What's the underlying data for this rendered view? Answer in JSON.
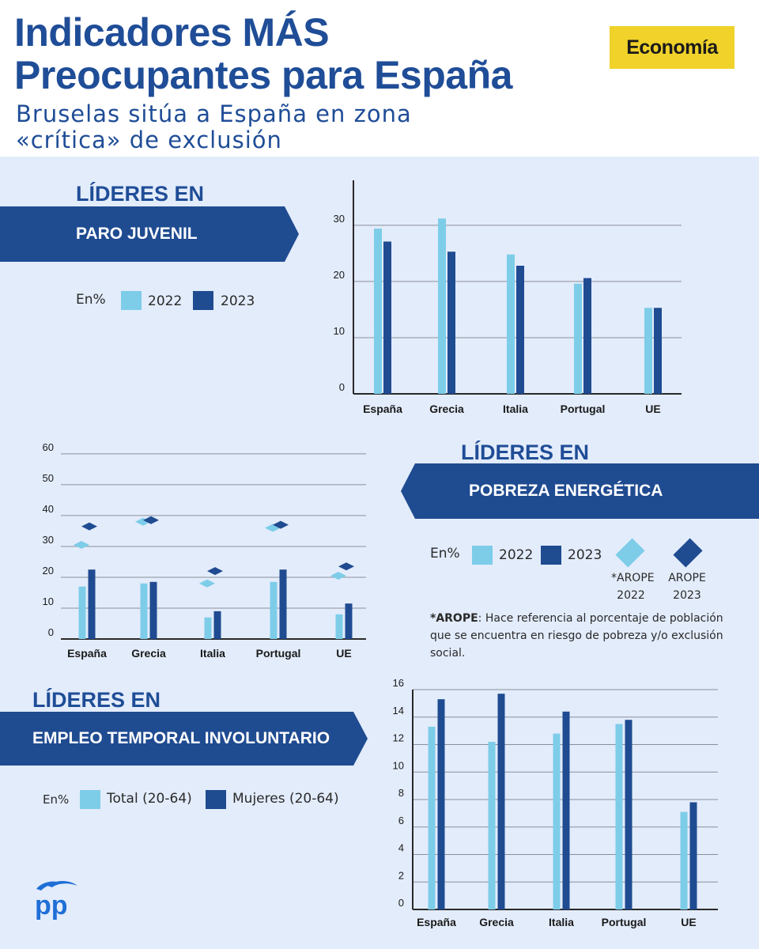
{
  "header": {
    "title_line1_part1": "Indicadores ",
    "title_line1_part2": "MÁS",
    "title_line2": "Preocupantes para España",
    "subtitle_line1": "Bruselas sitúa a España en zona",
    "subtitle_line2": "«crítica» de exclusión",
    "badge": "Economía"
  },
  "sections": {
    "paro": {
      "lideres": "LÍDERES EN",
      "banner": "PARO JUVENIL",
      "unit": "En%",
      "legend": [
        "2022",
        "2023"
      ]
    },
    "pobreza": {
      "lideres": "LÍDERES EN",
      "banner": "POBREZA ENERGÉTICA",
      "unit": "En%",
      "legend": [
        "2022",
        "2023"
      ],
      "arope2022_l1": "*AROPE",
      "arope2022_l2": "2022",
      "arope2023_l1": "AROPE",
      "arope2023_l2": "2023",
      "note_bold": "*AROPE",
      "note_rest": ": Hace referencia al porcentaje de población que se encuentra en riesgo de pobreza y/o exclusión social."
    },
    "empleo": {
      "lideres": "LÍDERES EN",
      "banner": "EMPLEO TEMPORAL INVOLUNTARIO",
      "unit": "En%",
      "legend": [
        "Total (20-64)",
        "Mujeres (20-64)"
      ]
    }
  },
  "colors": {
    "light": "#7dcde9",
    "dark": "#1f4b91",
    "accent": "#f0d22a",
    "background": "#e3ecfb"
  },
  "logo": {
    "text": "pp"
  },
  "chart_data": [
    {
      "type": "bar",
      "categories": [
        "España",
        "Grecia",
        "Italia",
        "Portugal",
        "UE"
      ],
      "series": [
        {
          "name": "2022",
          "values": [
            29.4,
            31.2,
            24.8,
            19.6,
            15.3
          ]
        },
        {
          "name": "2023",
          "values": [
            27.1,
            25.3,
            22.8,
            20.6,
            15.3
          ]
        }
      ],
      "yticks": [
        0,
        10,
        20,
        30
      ],
      "ylim": [
        0,
        38
      ]
    },
    {
      "type": "bar",
      "categories": [
        "España",
        "Grecia",
        "Italia",
        "Portugal",
        "UE"
      ],
      "series": [
        {
          "name": "2022",
          "values": [
            17,
            18,
            7,
            18.5,
            8
          ]
        },
        {
          "name": "2023",
          "values": [
            22.5,
            18.5,
            9,
            22.5,
            11.5
          ]
        }
      ],
      "markers": [
        {
          "name": "*AROPE 2022",
          "values": [
            30.5,
            38,
            18,
            36,
            20.5
          ]
        },
        {
          "name": "AROPE 2023",
          "values": [
            36.5,
            38.5,
            22,
            37,
            23.5
          ]
        }
      ],
      "yticks": [
        0,
        10,
        20,
        30,
        40,
        50,
        60
      ],
      "ylim": [
        0,
        61
      ]
    },
    {
      "type": "bar",
      "categories": [
        "España",
        "Grecia",
        "Italia",
        "Portugal",
        "UE"
      ],
      "series": [
        {
          "name": "Total (20-64)",
          "values": [
            13.3,
            12.2,
            12.8,
            13.5,
            7.1
          ]
        },
        {
          "name": "Mujeres (20-64)",
          "values": [
            15.3,
            15.7,
            14.4,
            13.8,
            7.8
          ]
        }
      ],
      "yticks": [
        0,
        2,
        4,
        6,
        8,
        10,
        12,
        14,
        16
      ],
      "ylim": [
        0,
        16
      ]
    }
  ]
}
